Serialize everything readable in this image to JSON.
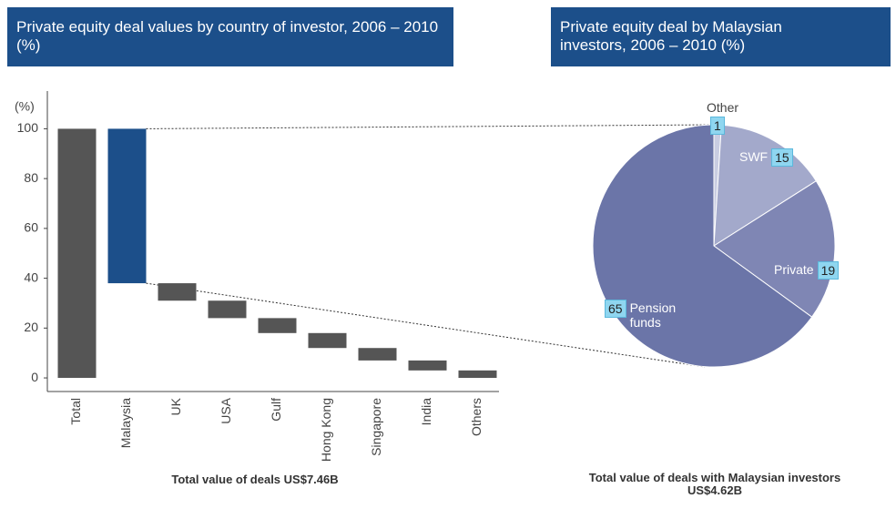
{
  "chart_data": [
    {
      "type": "waterfall",
      "title": "Private equity deal values by country of investor, 2006 – 2010 (%)",
      "y_label": "(%)",
      "categories": [
        "Total",
        "Malaysia",
        "UK",
        "USA",
        "Gulf",
        "Hong Kong",
        "Singapore",
        "India",
        "Others"
      ],
      "values": [
        100,
        62,
        7,
        7,
        6,
        6,
        5,
        4,
        3
      ],
      "colors": [
        "#555555",
        "#1c4f8a",
        "#555555",
        "#555555",
        "#555555",
        "#555555",
        "#555555",
        "#555555",
        "#555555"
      ],
      "ylim": [
        -4,
        106
      ],
      "yticks": [
        0,
        20,
        40,
        60,
        80,
        100
      ],
      "note": "Total value of deals US$7.46B"
    },
    {
      "type": "pie",
      "title": "Private equity deal by Malaysian investors, 2006 – 2010 (%)",
      "categories": [
        "Other",
        "SWF",
        "Private",
        "Pension funds"
      ],
      "values": [
        1,
        15,
        19,
        65
      ],
      "colors": [
        "#c9cde2",
        "#a3a9cb",
        "#7f86b4",
        "#6b75a8"
      ],
      "note": "Total value of deals with Malaysian investors US$4.62B"
    }
  ]
}
